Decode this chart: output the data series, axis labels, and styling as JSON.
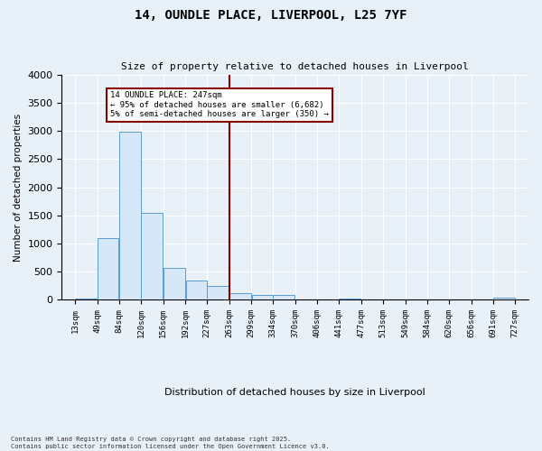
{
  "title": "14, OUNDLE PLACE, LIVERPOOL, L25 7YF",
  "subtitle": "Size of property relative to detached houses in Liverpool",
  "xlabel": "Distribution of detached houses by size in Liverpool",
  "ylabel": "Number of detached properties",
  "bar_color": "#d6e8f7",
  "bar_edge_color": "#5b9bd5",
  "background_color": "#e8f0f8",
  "grid_color": "#ffffff",
  "fig_bg_color": "#e8f0f8",
  "vline_x": 263,
  "vline_color": "#8b0000",
  "annotation_text": "14 OUNDLE PLACE: 247sqm\n← 95% of detached houses are smaller (6,682)\n5% of semi-detached houses are larger (350) →",
  "annotation_box_color": "#8b0000",
  "footnote": "Contains HM Land Registry data © Crown copyright and database right 2025.\nContains public sector information licensed under the Open Government Licence v3.0.",
  "bin_edges": [
    13,
    49,
    84,
    120,
    156,
    192,
    227,
    263,
    299,
    334,
    370,
    406,
    441,
    477,
    513,
    549,
    584,
    620,
    656,
    691,
    727
  ],
  "bar_heights": [
    30,
    1090,
    2980,
    1540,
    570,
    350,
    250,
    120,
    80,
    90,
    0,
    0,
    30,
    0,
    0,
    0,
    0,
    0,
    0,
    40
  ],
  "ylim": [
    0,
    4000
  ],
  "yticks": [
    0,
    500,
    1000,
    1500,
    2000,
    2500,
    3000,
    3500,
    4000
  ]
}
